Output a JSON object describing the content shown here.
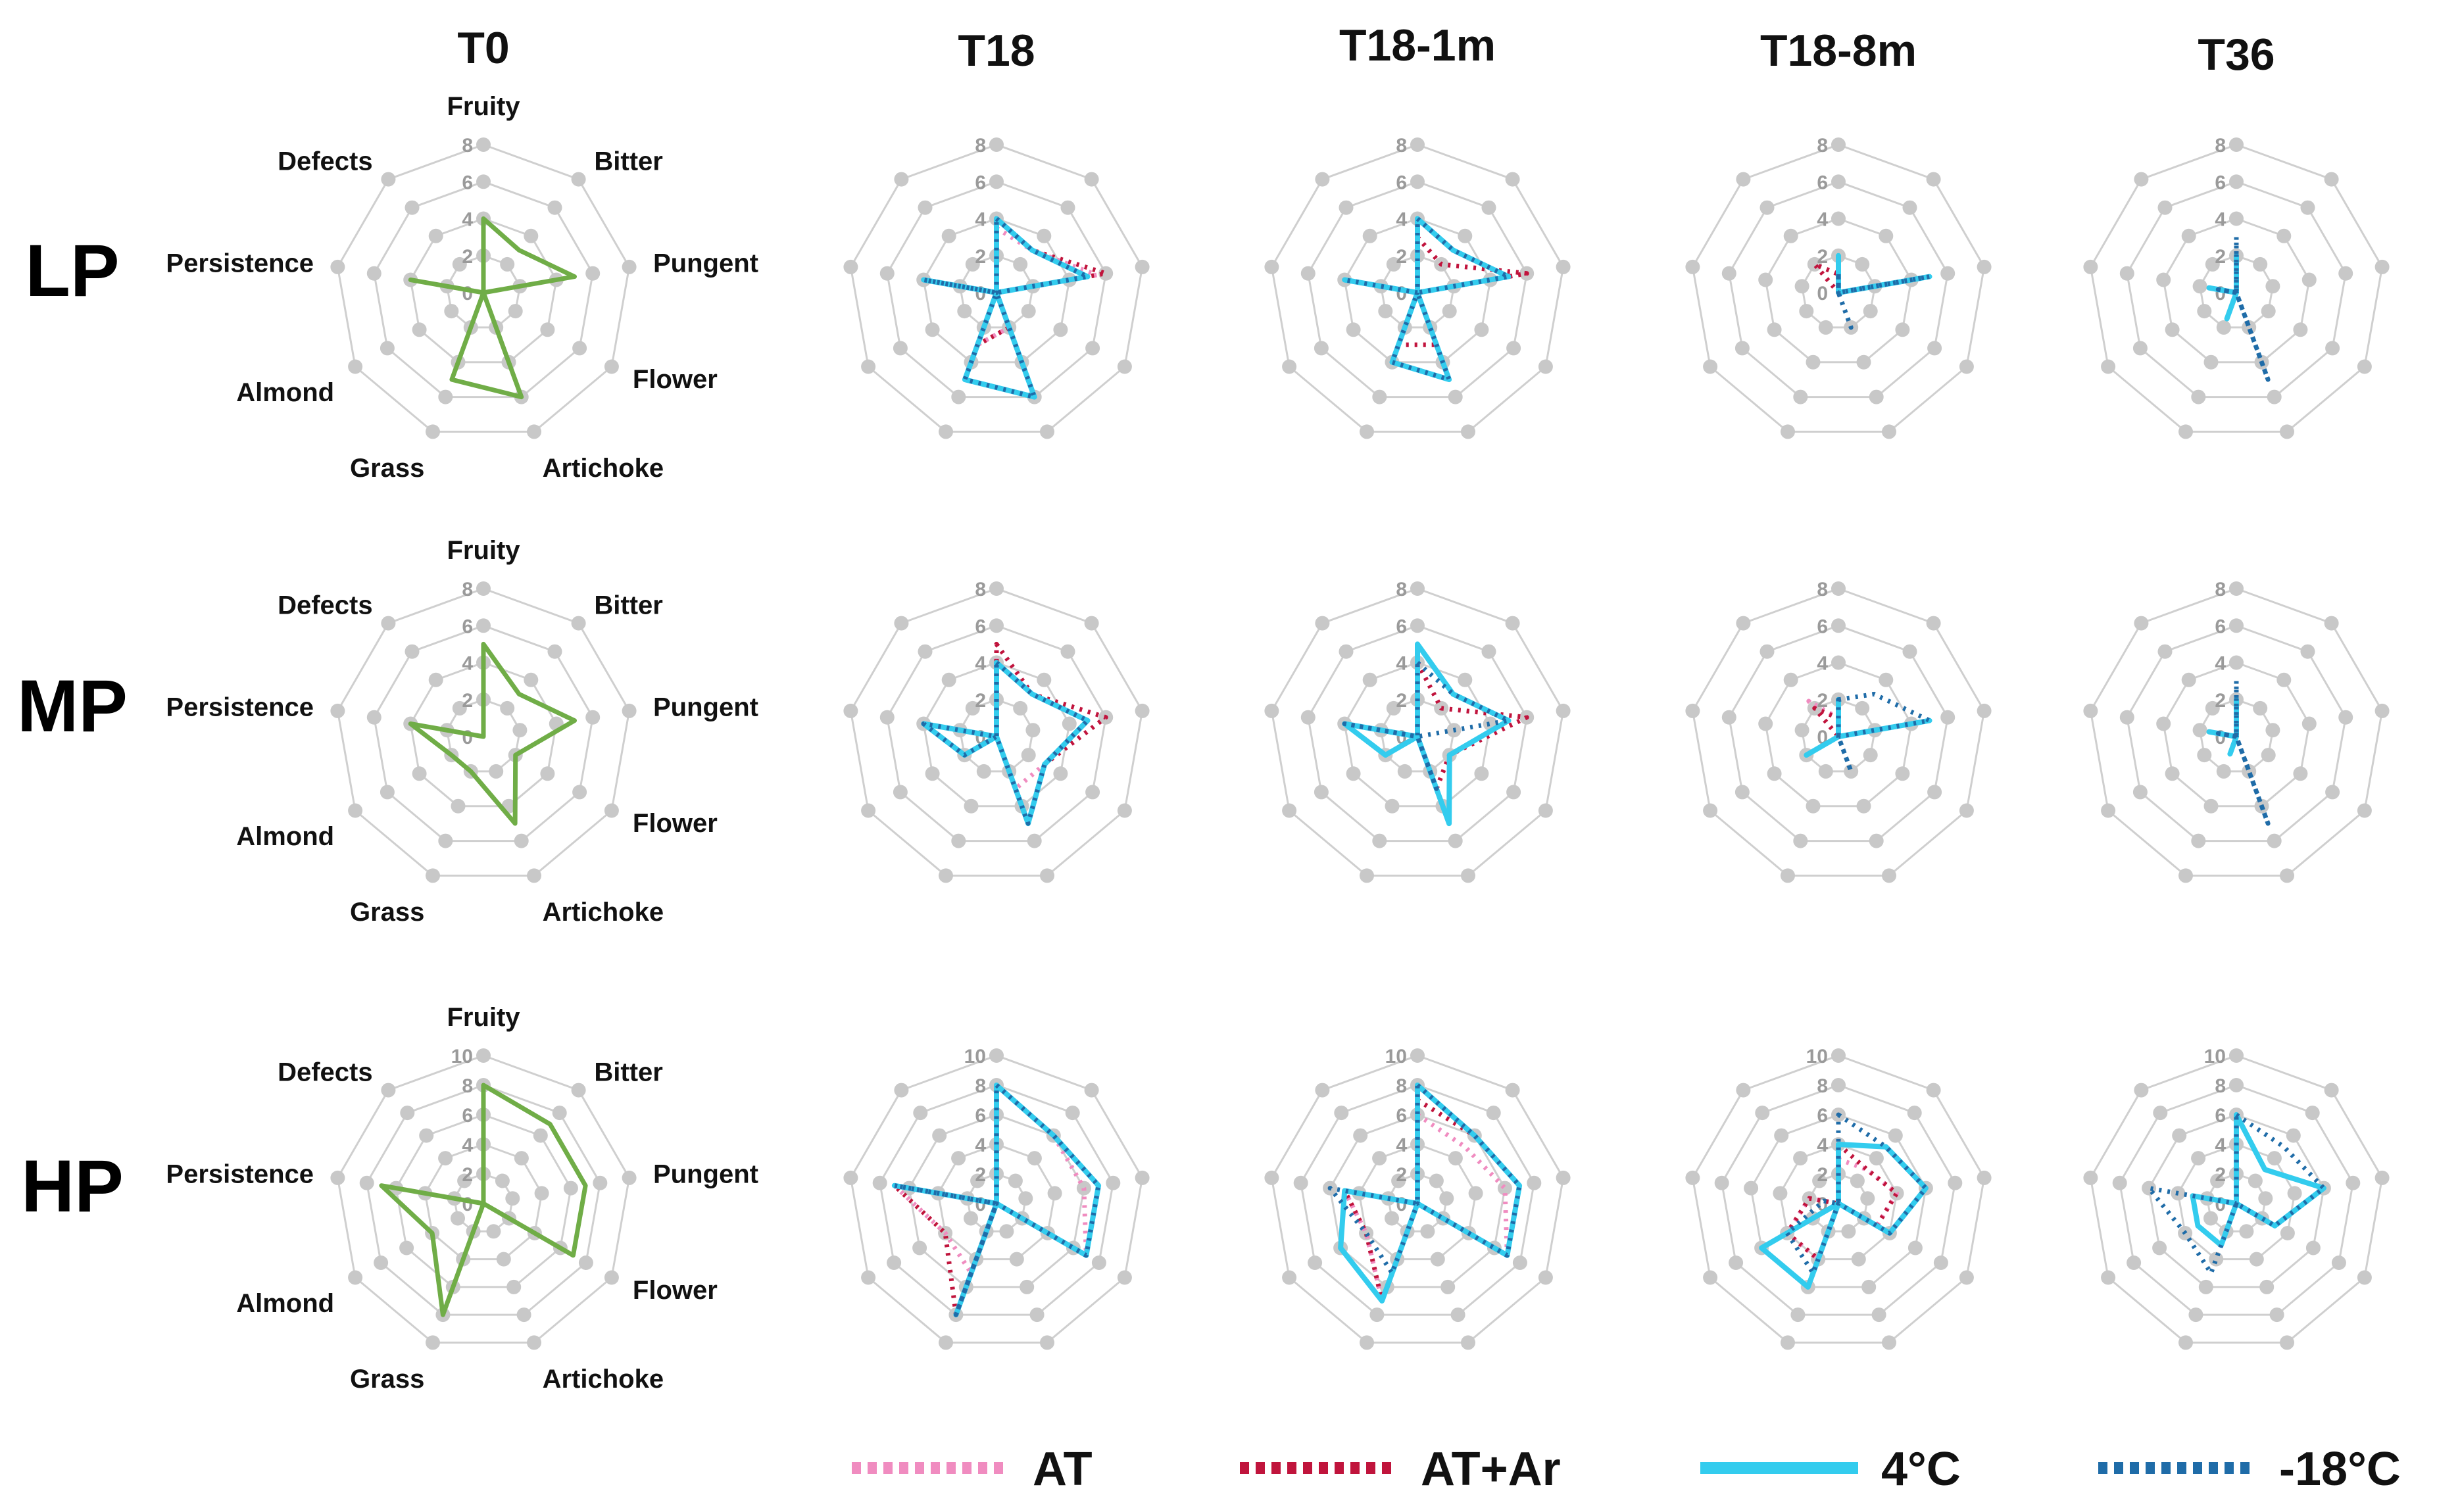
{
  "figure": {
    "columns": [
      "T0",
      "T18",
      "T18-1m",
      "T18-8m",
      "T36"
    ],
    "rows": [
      "LP",
      "MP",
      "HP"
    ]
  },
  "colors": {
    "T0": "#70AD47",
    "AT": "#F08CC0",
    "AT+Ar": "#C0143C",
    "4C": "#33CCEE",
    "m18C": "#1F6CA8",
    "grid": "#cfcfcf",
    "node": "#c8c8c8"
  },
  "legend": [
    {
      "key": "AT",
      "label": "AT",
      "style": "dotted"
    },
    {
      "key": "AT+Ar",
      "label": "AT+Ar",
      "style": "dotted"
    },
    {
      "key": "4C",
      "label": "4°C",
      "style": "solid"
    },
    {
      "key": "m18C",
      "label": "-18°C",
      "style": "dotted"
    }
  ],
  "chart_data": [
    {
      "type": "radar",
      "row": "LP",
      "column": "T0",
      "axes": [
        "Fruity",
        "Bitter",
        "Pungent",
        "Flower",
        "Artichoke",
        "Grass",
        "Almond",
        "Persistence",
        "Defects"
      ],
      "ticks": [
        "0",
        "2",
        "4",
        "6",
        "8"
      ],
      "rmax": 8,
      "series": [
        {
          "name": "T0",
          "values": [
            4,
            3,
            5,
            0,
            6,
            5,
            0,
            4,
            0
          ]
        }
      ]
    },
    {
      "type": "radar",
      "row": "LP",
      "column": "T18",
      "axes": [
        "Fruity",
        "Bitter",
        "Pungent",
        "Flower",
        "Artichoke",
        "Grass",
        "Almond",
        "Persistence",
        "Defects"
      ],
      "ticks": [
        "0",
        "2",
        "4",
        "6",
        "8"
      ],
      "rmax": 8,
      "series": [
        {
          "name": "AT",
          "values": [
            3.5,
            3,
            5.5,
            0,
            2,
            3,
            0,
            4,
            0
          ]
        },
        {
          "name": "AT+Ar",
          "values": [
            4,
            3,
            6,
            0,
            2,
            3,
            0,
            4,
            0
          ]
        },
        {
          "name": "4°C",
          "values": [
            4,
            3,
            5,
            0,
            6,
            5,
            0,
            4,
            0
          ]
        },
        {
          "name": "-18°C",
          "values": [
            4,
            3,
            5,
            0,
            6,
            5,
            0,
            4,
            0
          ]
        }
      ]
    },
    {
      "type": "radar",
      "row": "LP",
      "column": "T18-1m",
      "axes": [
        "Fruity",
        "Bitter",
        "Pungent",
        "Flower",
        "Artichoke",
        "Grass",
        "Almond",
        "Persistence",
        "Defects"
      ],
      "ticks": [
        "0",
        "2",
        "4",
        "6",
        "8"
      ],
      "rmax": 8,
      "series": [
        {
          "name": "AT",
          "values": [
            3,
            2,
            6,
            0,
            3,
            3,
            0,
            4,
            0
          ]
        },
        {
          "name": "AT+Ar",
          "values": [
            3,
            2,
            6,
            0,
            3,
            3,
            0,
            4,
            0
          ]
        },
        {
          "name": "4°C",
          "values": [
            4,
            3,
            5,
            0,
            5,
            4,
            0,
            4,
            0
          ]
        },
        {
          "name": "-18°C",
          "values": [
            4,
            3,
            5,
            0,
            5,
            4,
            0,
            4,
            0
          ]
        }
      ]
    },
    {
      "type": "radar",
      "row": "LP",
      "column": "T18-8m",
      "axes": [
        "Fruity",
        "Bitter",
        "Pungent",
        "Flower",
        "Artichoke",
        "Grass",
        "Almond",
        "Persistence",
        "Defects"
      ],
      "ticks": [
        "0",
        "2",
        "4",
        "6",
        "8"
      ],
      "rmax": 8,
      "series": [
        {
          "name": "AT",
          "values": [
            1,
            0,
            0,
            0,
            0,
            0,
            0,
            0,
            2
          ]
        },
        {
          "name": "AT+Ar",
          "values": [
            1,
            0,
            0,
            0,
            0,
            0,
            0,
            0,
            2
          ]
        },
        {
          "name": "4°C",
          "values": [
            2,
            0,
            5,
            0,
            0,
            0,
            0,
            0,
            0
          ]
        },
        {
          "name": "-18°C",
          "values": [
            1,
            0,
            5,
            0,
            2,
            0,
            0,
            0,
            0
          ]
        }
      ]
    },
    {
      "type": "radar",
      "row": "LP",
      "column": "T36",
      "axes": [
        "Fruity",
        "Bitter",
        "Pungent",
        "Flower",
        "Artichoke",
        "Grass",
        "Almond",
        "Persistence",
        "Defects"
      ],
      "ticks": [
        "0",
        "2",
        "4",
        "6",
        "8"
      ],
      "rmax": 8,
      "series": [
        {
          "name": "4°C",
          "values": [
            2,
            0,
            0,
            0,
            0,
            1.5,
            0,
            1.5,
            0
          ]
        },
        {
          "name": "-18°C",
          "values": [
            3,
            0,
            0,
            0,
            5,
            0,
            0,
            1,
            0
          ]
        }
      ]
    },
    {
      "type": "radar",
      "row": "MP",
      "column": "T0",
      "axes": [
        "Fruity",
        "Bitter",
        "Pungent",
        "Flower",
        "Artichoke",
        "Grass",
        "Almond",
        "Persistence",
        "Defects"
      ],
      "ticks": [
        "0",
        "2",
        "4",
        "6",
        "8"
      ],
      "rmax": 8,
      "series": [
        {
          "name": "T0",
          "values": [
            5,
            3,
            5,
            2,
            5,
            2,
            2,
            4,
            0
          ]
        }
      ]
    },
    {
      "type": "radar",
      "row": "MP",
      "column": "T18",
      "axes": [
        "Fruity",
        "Bitter",
        "Pungent",
        "Flower",
        "Artichoke",
        "Grass",
        "Almond",
        "Persistence",
        "Defects"
      ],
      "ticks": [
        "0",
        "2",
        "4",
        "6",
        "8"
      ],
      "rmax": 8,
      "series": [
        {
          "name": "AT",
          "values": [
            5,
            3,
            6,
            3,
            3,
            0,
            2,
            4,
            0
          ]
        },
        {
          "name": "AT+Ar",
          "values": [
            5,
            3,
            6,
            3,
            5,
            0,
            2,
            4,
            0
          ]
        },
        {
          "name": "4°C",
          "values": [
            4,
            3,
            5,
            3,
            5,
            0,
            2,
            4,
            0
          ]
        },
        {
          "name": "-18°C",
          "values": [
            4,
            3,
            5,
            3,
            5,
            0,
            2,
            4,
            0
          ]
        }
      ]
    },
    {
      "type": "radar",
      "row": "MP",
      "column": "T18-1m",
      "axes": [
        "Fruity",
        "Bitter",
        "Pungent",
        "Flower",
        "Artichoke",
        "Grass",
        "Almond",
        "Persistence",
        "Defects"
      ],
      "ticks": [
        "0",
        "2",
        "4",
        "6",
        "8"
      ],
      "rmax": 8,
      "series": [
        {
          "name": "AT",
          "values": [
            4,
            2,
            6,
            2,
            3,
            0,
            2,
            4,
            0
          ]
        },
        {
          "name": "AT+Ar",
          "values": [
            4,
            2,
            6,
            2,
            3,
            0,
            2,
            4,
            0
          ]
        },
        {
          "name": "4°C",
          "values": [
            5,
            3,
            5,
            2,
            5,
            0,
            2,
            4,
            0
          ]
        },
        {
          "name": "-18°C",
          "values": [
            4,
            3,
            5,
            0,
            3,
            0,
            0,
            4,
            0
          ]
        }
      ]
    },
    {
      "type": "radar",
      "row": "MP",
      "column": "T18-8m",
      "axes": [
        "Fruity",
        "Bitter",
        "Pungent",
        "Flower",
        "Artichoke",
        "Grass",
        "Almond",
        "Persistence",
        "Defects"
      ],
      "ticks": [
        "0",
        "2",
        "4",
        "6",
        "8"
      ],
      "rmax": 8,
      "series": [
        {
          "name": "AT",
          "values": [
            1,
            0,
            5,
            0,
            0,
            0,
            0,
            0,
            2.5
          ]
        },
        {
          "name": "AT+Ar",
          "values": [
            1,
            0,
            5,
            0,
            0,
            0,
            0,
            0,
            2
          ]
        },
        {
          "name": "4°C",
          "values": [
            2,
            0,
            5,
            0,
            0,
            0,
            2,
            0,
            0
          ]
        },
        {
          "name": "-18°C",
          "values": [
            2,
            3,
            5,
            0,
            2,
            0,
            0,
            0,
            0
          ]
        }
      ]
    },
    {
      "type": "radar",
      "row": "MP",
      "column": "T36",
      "axes": [
        "Fruity",
        "Bitter",
        "Pungent",
        "Flower",
        "Artichoke",
        "Grass",
        "Almond",
        "Persistence",
        "Defects"
      ],
      "ticks": [
        "0",
        "2",
        "4",
        "6",
        "8"
      ],
      "rmax": 8,
      "series": [
        {
          "name": "4°C",
          "values": [
            2,
            0,
            0,
            0,
            0,
            1,
            0,
            1.5,
            0
          ]
        },
        {
          "name": "-18°C",
          "values": [
            3,
            0,
            0,
            0,
            5,
            0,
            0,
            1,
            0
          ]
        }
      ]
    },
    {
      "type": "radar",
      "row": "HP",
      "column": "T0",
      "axes": [
        "Fruity",
        "Bitter",
        "Pungent",
        "Flower",
        "Artichoke",
        "Grass",
        "Almond",
        "Persistence",
        "Defects"
      ],
      "ticks": [
        "0",
        "2",
        "4",
        "6",
        "8",
        "10"
      ],
      "rmax": 10,
      "series": [
        {
          "name": "T0",
          "values": [
            8,
            7,
            7,
            7,
            0,
            8,
            4,
            7,
            0
          ]
        }
      ]
    },
    {
      "type": "radar",
      "row": "HP",
      "column": "T18",
      "axes": [
        "Fruity",
        "Bitter",
        "Pungent",
        "Flower",
        "Artichoke",
        "Grass",
        "Almond",
        "Persistence",
        "Defects"
      ],
      "ticks": [
        "0",
        "2",
        "4",
        "6",
        "8",
        "10"
      ],
      "rmax": 10,
      "series": [
        {
          "name": "AT",
          "values": [
            8,
            6,
            6,
            7,
            0,
            5,
            4,
            7,
            0
          ]
        },
        {
          "name": "AT+Ar",
          "values": [
            8,
            6,
            7,
            7,
            0,
            8,
            4,
            7,
            0
          ]
        },
        {
          "name": "4°C",
          "values": [
            8,
            6,
            7,
            7,
            0,
            8,
            0,
            7,
            0
          ]
        },
        {
          "name": "-18°C",
          "values": [
            8,
            6,
            7,
            7,
            0,
            8,
            0,
            7,
            0
          ]
        }
      ]
    },
    {
      "type": "radar",
      "row": "HP",
      "column": "T18-1m",
      "axes": [
        "Fruity",
        "Bitter",
        "Pungent",
        "Flower",
        "Artichoke",
        "Grass",
        "Almond",
        "Persistence",
        "Defects"
      ],
      "ticks": [
        "0",
        "2",
        "4",
        "6",
        "8",
        "10"
      ],
      "rmax": 10,
      "series": [
        {
          "name": "AT",
          "values": [
            6,
            5,
            6,
            7,
            0,
            7,
            4,
            5,
            0
          ]
        },
        {
          "name": "AT+Ar",
          "values": [
            7,
            6,
            7,
            7,
            0,
            7,
            4,
            5,
            0
          ]
        },
        {
          "name": "4°C",
          "values": [
            8,
            6,
            7,
            7,
            0,
            7,
            6,
            5,
            0
          ]
        },
        {
          "name": "-18°C",
          "values": [
            8,
            6,
            7,
            7,
            0,
            5,
            4,
            6,
            0
          ]
        }
      ]
    },
    {
      "type": "radar",
      "row": "HP",
      "column": "T18-8m",
      "axes": [
        "Fruity",
        "Bitter",
        "Pungent",
        "Flower",
        "Artichoke",
        "Grass",
        "Almond",
        "Persistence",
        "Defects"
      ],
      "ticks": [
        "0",
        "2",
        "4",
        "6",
        "8",
        "10"
      ],
      "rmax": 10,
      "series": [
        {
          "name": "AT",
          "values": [
            3,
            3,
            4,
            3,
            0,
            4,
            4,
            2,
            0
          ]
        },
        {
          "name": "AT+Ar",
          "values": [
            4,
            3,
            4,
            3,
            0,
            4,
            4,
            2,
            0
          ]
        },
        {
          "name": "4°C",
          "values": [
            4,
            5,
            6,
            4,
            0,
            6,
            6,
            0,
            0
          ]
        },
        {
          "name": "-18°C",
          "values": [
            6,
            5,
            6,
            4,
            0,
            5,
            4,
            1,
            0
          ]
        }
      ]
    },
    {
      "type": "radar",
      "row": "HP",
      "column": "T36",
      "axes": [
        "Fruity",
        "Bitter",
        "Pungent",
        "Flower",
        "Artichoke",
        "Grass",
        "Almond",
        "Persistence",
        "Defects"
      ],
      "ticks": [
        "0",
        "2",
        "4",
        "6",
        "8",
        "10"
      ],
      "rmax": 10,
      "series": [
        {
          "name": "4°C",
          "values": [
            6,
            3,
            6,
            3,
            0,
            3,
            3,
            3,
            0
          ]
        },
        {
          "name": "-18°C",
          "values": [
            6,
            5,
            6,
            3,
            0,
            5,
            4,
            6,
            0
          ]
        }
      ]
    }
  ]
}
